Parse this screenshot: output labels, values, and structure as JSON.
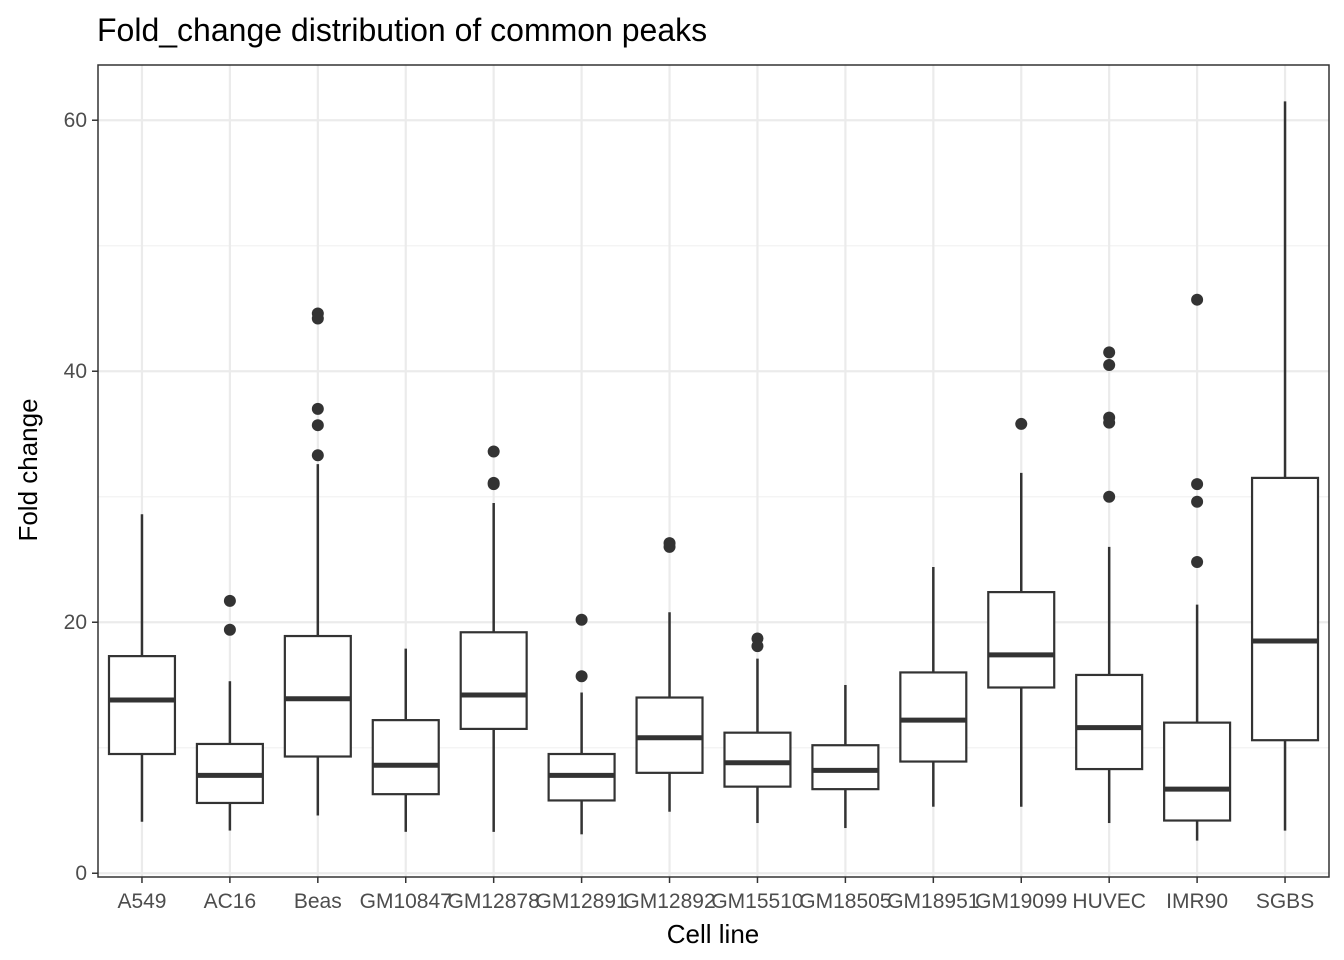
{
  "chart_data": {
    "type": "boxplot",
    "title": "Fold_change distribution of common peaks",
    "xlabel": "Cell line",
    "ylabel": "Fold change",
    "ylim": [
      -0.3,
      64.4
    ],
    "yticks": [
      0,
      20,
      40,
      60
    ],
    "grid": true,
    "legend": "none",
    "categories": [
      "A549",
      "AC16",
      "Beas",
      "GM10847",
      "GM12878",
      "GM12891",
      "GM12892",
      "GM15510",
      "GM18505",
      "GM18951",
      "GM19099",
      "HUVEC",
      "IMR90",
      "SGBS"
    ],
    "boxes": [
      {
        "category": "A549",
        "whisker_low": 4.1,
        "q1": 9.5,
        "median": 13.8,
        "q3": 17.3,
        "whisker_high": 28.6,
        "outliers": []
      },
      {
        "category": "AC16",
        "whisker_low": 3.4,
        "q1": 5.6,
        "median": 7.8,
        "q3": 10.3,
        "whisker_high": 15.3,
        "outliers": [
          21.7,
          19.4
        ]
      },
      {
        "category": "Beas",
        "whisker_low": 4.6,
        "q1": 9.3,
        "median": 13.9,
        "q3": 18.9,
        "whisker_high": 32.6,
        "outliers": [
          44.6,
          44.2,
          37.0,
          35.7,
          33.3
        ]
      },
      {
        "category": "GM10847",
        "whisker_low": 3.3,
        "q1": 6.3,
        "median": 8.6,
        "q3": 12.2,
        "whisker_high": 17.9,
        "outliers": []
      },
      {
        "category": "GM12878",
        "whisker_low": 3.3,
        "q1": 11.5,
        "median": 14.2,
        "q3": 19.2,
        "whisker_high": 29.5,
        "outliers": [
          33.6,
          31.1,
          31.0
        ]
      },
      {
        "category": "GM12891",
        "whisker_low": 3.1,
        "q1": 5.8,
        "median": 7.8,
        "q3": 9.5,
        "whisker_high": 14.4,
        "outliers": [
          20.2,
          15.7
        ]
      },
      {
        "category": "GM12892",
        "whisker_low": 4.9,
        "q1": 8.0,
        "median": 10.8,
        "q3": 14.0,
        "whisker_high": 20.8,
        "outliers": [
          26.3,
          26.0
        ]
      },
      {
        "category": "GM15510",
        "whisker_low": 4.0,
        "q1": 6.9,
        "median": 8.8,
        "q3": 11.2,
        "whisker_high": 17.1,
        "outliers": [
          18.7,
          18.1
        ]
      },
      {
        "category": "GM18505",
        "whisker_low": 3.6,
        "q1": 6.7,
        "median": 8.2,
        "q3": 10.2,
        "whisker_high": 15.0,
        "outliers": []
      },
      {
        "category": "GM18951",
        "whisker_low": 5.3,
        "q1": 8.9,
        "median": 12.2,
        "q3": 16.0,
        "whisker_high": 24.4,
        "outliers": []
      },
      {
        "category": "GM19099",
        "whisker_low": 5.3,
        "q1": 14.8,
        "median": 17.4,
        "q3": 22.4,
        "whisker_high": 31.9,
        "outliers": [
          35.8
        ]
      },
      {
        "category": "HUVEC",
        "whisker_low": 4.0,
        "q1": 8.3,
        "median": 11.6,
        "q3": 15.8,
        "whisker_high": 26.0,
        "outliers": [
          41.5,
          40.5,
          36.3,
          35.9,
          30.0
        ]
      },
      {
        "category": "IMR90",
        "whisker_low": 2.6,
        "q1": 4.2,
        "median": 6.7,
        "q3": 12.0,
        "whisker_high": 21.4,
        "outliers": [
          45.7,
          31.0,
          29.6,
          24.8
        ]
      },
      {
        "category": "SGBS",
        "whisker_low": 3.4,
        "q1": 10.6,
        "median": 18.5,
        "q3": 31.5,
        "whisker_high": 61.5,
        "outliers": []
      }
    ]
  }
}
